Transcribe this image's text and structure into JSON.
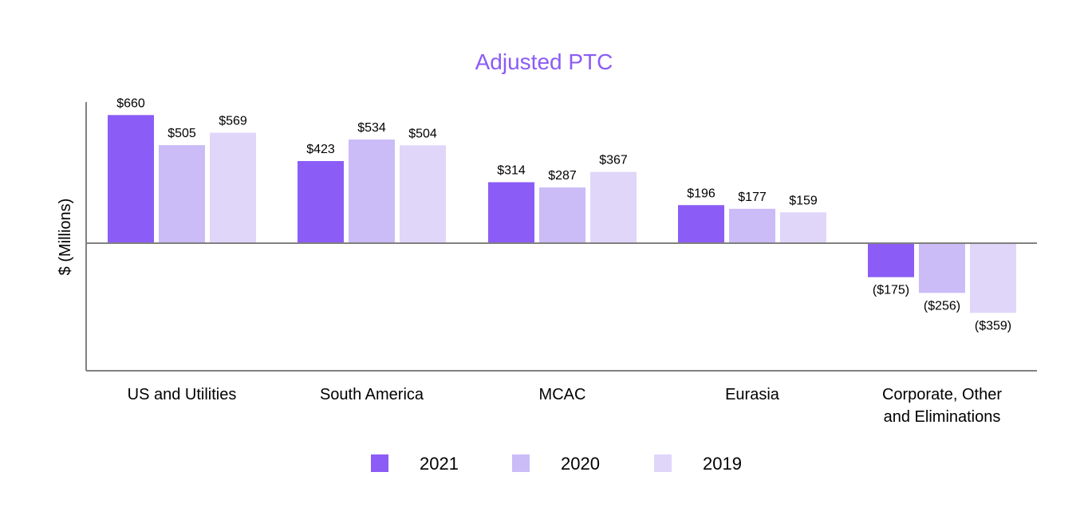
{
  "chart_data": {
    "type": "bar",
    "title": "Adjusted PTC",
    "xlabel": "",
    "ylabel": "$ (Millions)",
    "ylim": [
      -420,
      720
    ],
    "grid": false,
    "legend_position": "bottom-center",
    "categories": [
      [
        "US and Utilities"
      ],
      [
        "South America"
      ],
      [
        "MCAC"
      ],
      [
        "Eurasia"
      ],
      [
        "Corporate, Other",
        "and Eliminations"
      ]
    ],
    "series": [
      {
        "name": "2021",
        "color": "#8b5cf6",
        "values": [
          660,
          423,
          314,
          196,
          -175
        ],
        "labels": [
          "$660",
          "$423",
          "$314",
          "$196",
          "($175)"
        ]
      },
      {
        "name": "2020",
        "color": "#cbbcf7",
        "values": [
          505,
          534,
          287,
          177,
          -256
        ],
        "labels": [
          "$505",
          "$534",
          "$287",
          "$177",
          "($256)"
        ]
      },
      {
        "name": "2019",
        "color": "#e0d6fa",
        "values": [
          569,
          504,
          367,
          159,
          -359
        ],
        "labels": [
          "$569",
          "$504",
          "$367",
          "$159",
          "($359)"
        ]
      }
    ],
    "title_color": "#8b5cf6",
    "axis_color": "#808080"
  }
}
